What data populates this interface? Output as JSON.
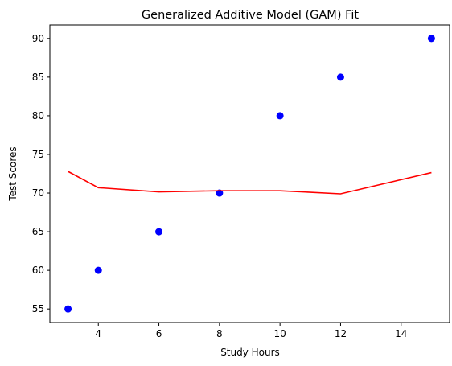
{
  "chart_data": {
    "type": "scatter",
    "title": "Generalized Additive Model (GAM) Fit",
    "xlabel": "Study Hours",
    "ylabel": "Test Scores",
    "xlim": [
      2.4,
      15.6
    ],
    "ylim": [
      53.25,
      91.75
    ],
    "xticks": [
      4,
      6,
      8,
      10,
      12,
      14
    ],
    "yticks": [
      55,
      60,
      65,
      70,
      75,
      80,
      85,
      90
    ],
    "grid": false,
    "series": [
      {
        "type": "scatter",
        "color": "#0000ff",
        "x": [
          3,
          4,
          6,
          8,
          10,
          12,
          15
        ],
        "y": [
          55,
          60,
          65,
          70,
          80,
          85,
          90
        ]
      },
      {
        "type": "line",
        "color": "#ff0000",
        "x": [
          3,
          4,
          6,
          8,
          10,
          12,
          15
        ],
        "y": [
          72.8,
          70.7,
          70.15,
          70.3,
          70.3,
          69.9,
          72.65
        ]
      }
    ]
  }
}
